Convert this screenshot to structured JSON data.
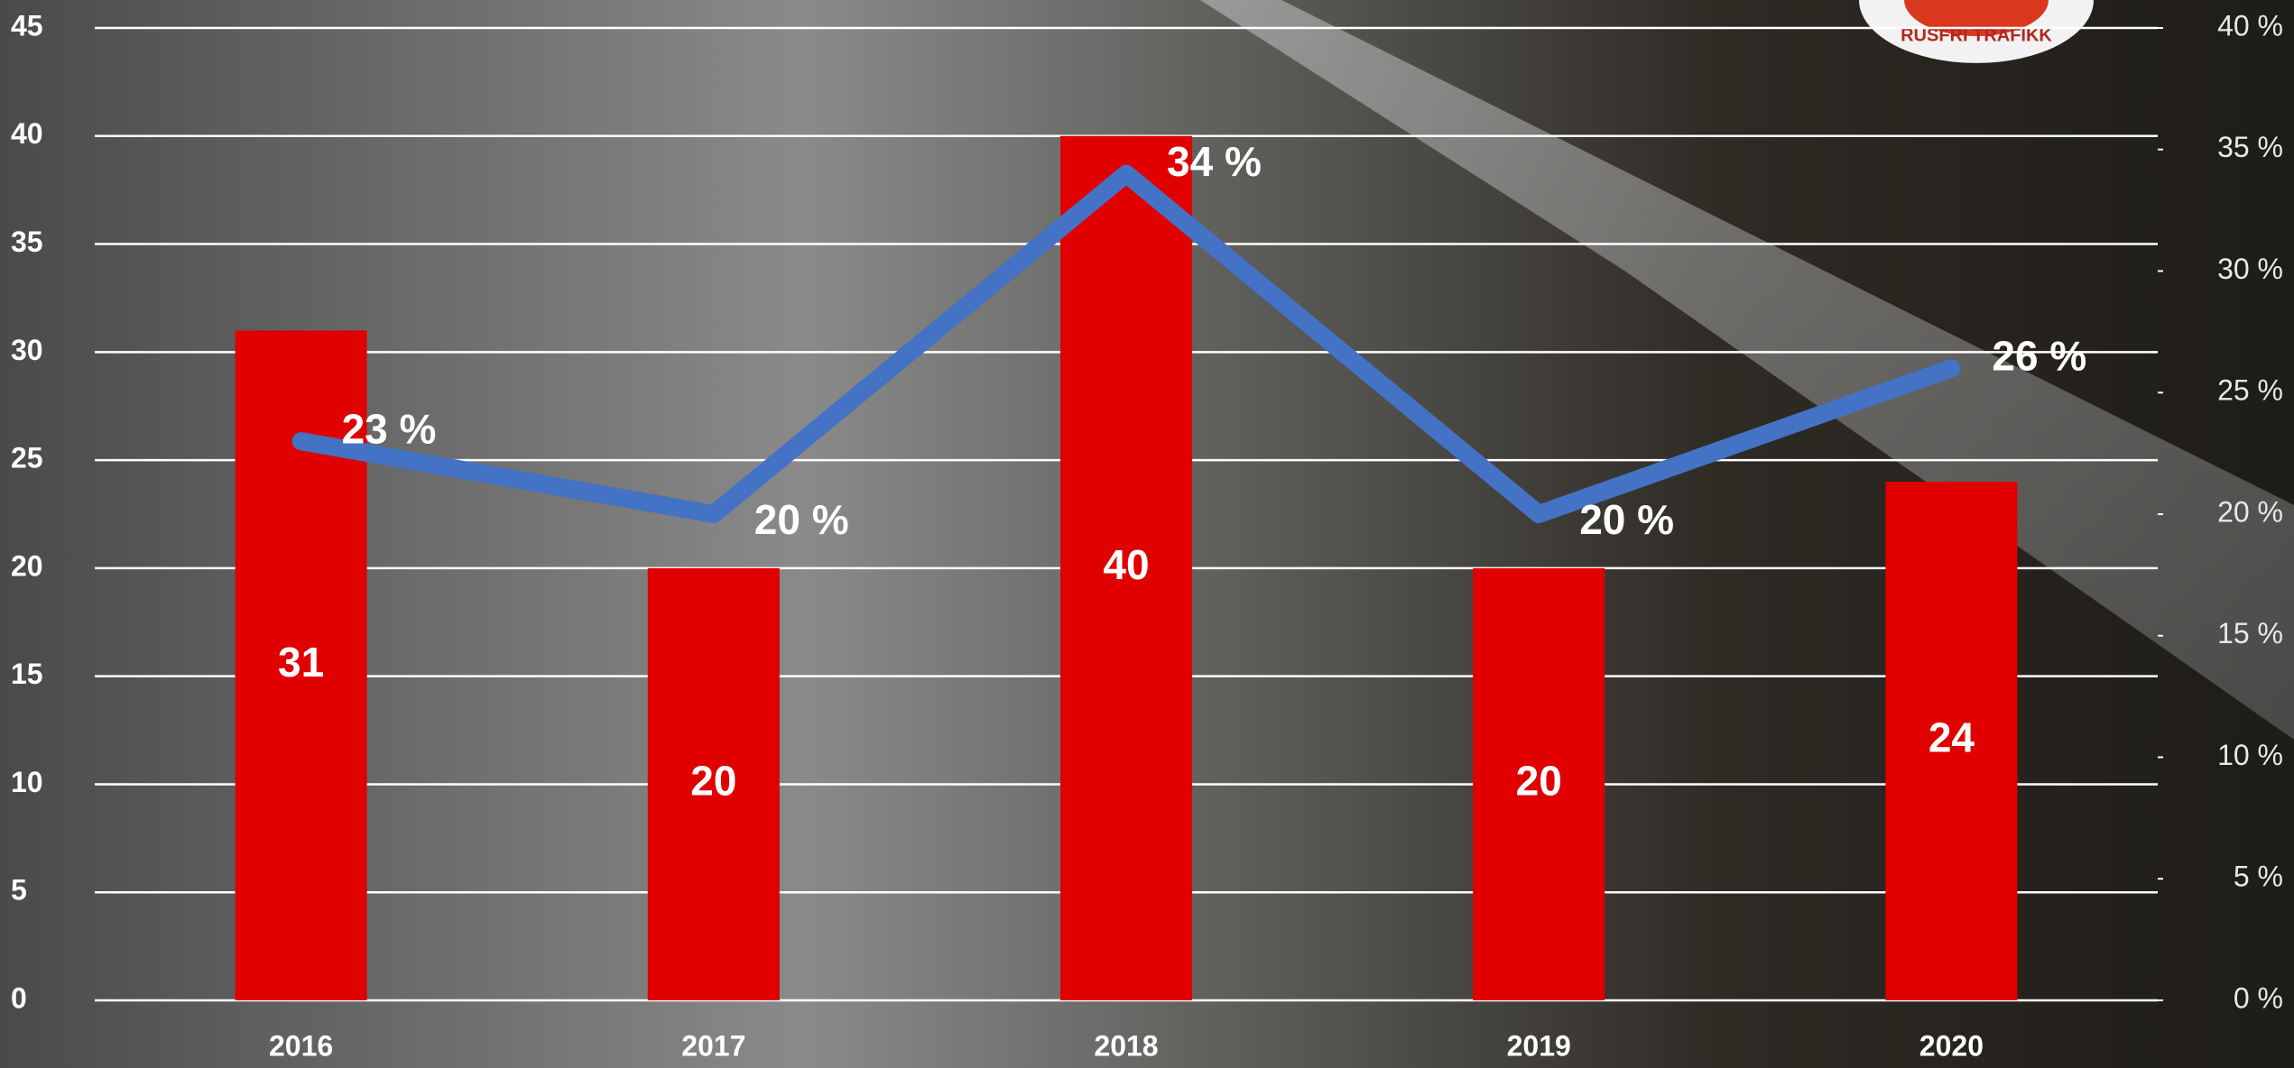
{
  "chart_data": {
    "type": "bar-line",
    "categories": [
      "2016",
      "2017",
      "2018",
      "2019",
      "2020"
    ],
    "series": [
      {
        "type": "bar",
        "color": "#e00000",
        "values": [
          31,
          20,
          40,
          20,
          24
        ]
      },
      {
        "type": "line",
        "axis": "y2",
        "color": "#4472c4",
        "values": [
          23,
          20,
          34,
          20,
          26
        ],
        "value_labels": [
          "23 %",
          "20 %",
          "34 %",
          "20 %",
          "26 %"
        ]
      }
    ],
    "ylim": [
      0,
      45
    ],
    "yticks": [
      0,
      5,
      10,
      15,
      20,
      25,
      30,
      35,
      40,
      45
    ],
    "y2lim": [
      0,
      40
    ],
    "y2ticks": [
      {
        "value": 0,
        "label": "0 %"
      },
      {
        "value": 5,
        "label": "5 %"
      },
      {
        "value": 10,
        "label": "10 %"
      },
      {
        "value": 15,
        "label": "15 %"
      },
      {
        "value": 20,
        "label": "20 %"
      },
      {
        "value": 25,
        "label": "25 %"
      },
      {
        "value": 30,
        "label": "30 %"
      },
      {
        "value": 35,
        "label": "35 %"
      },
      {
        "value": 40,
        "label": "40 %"
      }
    ],
    "grid": true
  },
  "logo": {
    "text": "RUSFRI TRAFIKK"
  }
}
